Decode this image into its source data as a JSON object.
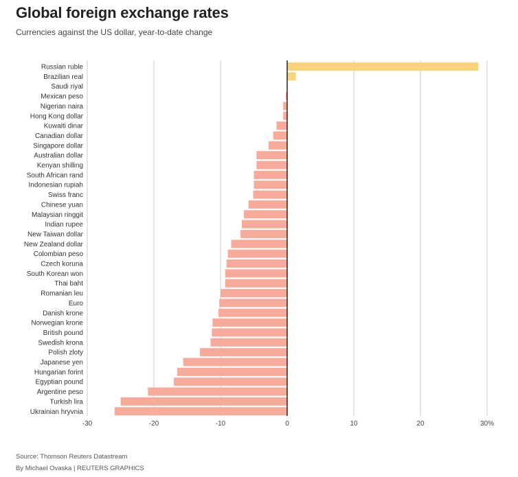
{
  "header": {
    "title": "Global foreign exchange rates",
    "subtitle": "Currencies against the US dollar, year-to-date change"
  },
  "footer": {
    "source": "Source: Thomson Reuters Datastream",
    "credit": "By Michael Ovaska | REUTERS GRAPHICS"
  },
  "chart_data": {
    "type": "bar",
    "orientation": "horizontal",
    "title": "Global foreign exchange rates",
    "subtitle": "Currencies against the US dollar, year-to-date change",
    "xlim": [
      -30,
      30
    ],
    "xticks": [
      -30,
      -20,
      -10,
      0,
      10,
      20,
      30
    ],
    "xtick_labels": [
      "-30",
      "-20",
      "-10",
      "0",
      "10",
      "20",
      "30%"
    ],
    "grid": true,
    "colors": {
      "positive": "#fad47a",
      "negative": "#f8ab9a",
      "zero_line": "#222222",
      "grid": "#cccccc"
    },
    "categories": [
      "Russian ruble",
      "Brazilian real",
      "Saudi riyal",
      "Mexican peso",
      "Nigerian naira",
      "Hong Kong dollar",
      "Kuwaiti dinar",
      "Canadian dollar",
      "Singapore dollar",
      "Australian dollar",
      "Kenyan shilling",
      "South African rand",
      "Indonesian rupiah",
      "Swiss franc",
      "Chinese yuan",
      "Malaysian ringgit",
      "Indian rupee",
      "New Taiwan dollar",
      "New Zealand dollar",
      "Colombian peso",
      "Czech koruna",
      "South Korean won",
      "Thai baht",
      "Romanian leu",
      "Euro",
      "Danish krone",
      "Norwegian krone",
      "British pound",
      "Swedish krona",
      "Polish zloty",
      "Japanese yen",
      "Hungarian forint",
      "Egyptian pound",
      "Argentine peso",
      "Turkish lira",
      "Ukrainian hryvnia"
    ],
    "values": [
      28.7,
      1.3,
      0.0,
      -0.2,
      -0.6,
      -0.6,
      -1.6,
      -2.1,
      -2.8,
      -4.6,
      -4.6,
      -5.0,
      -5.0,
      -5.1,
      -5.8,
      -6.5,
      -6.8,
      -7.0,
      -8.4,
      -8.9,
      -9.1,
      -9.3,
      -9.3,
      -10.0,
      -10.2,
      -10.3,
      -11.2,
      -11.3,
      -11.5,
      -13.1,
      -15.6,
      -16.5,
      -17.0,
      -20.9,
      -25.0,
      -25.9
    ]
  }
}
